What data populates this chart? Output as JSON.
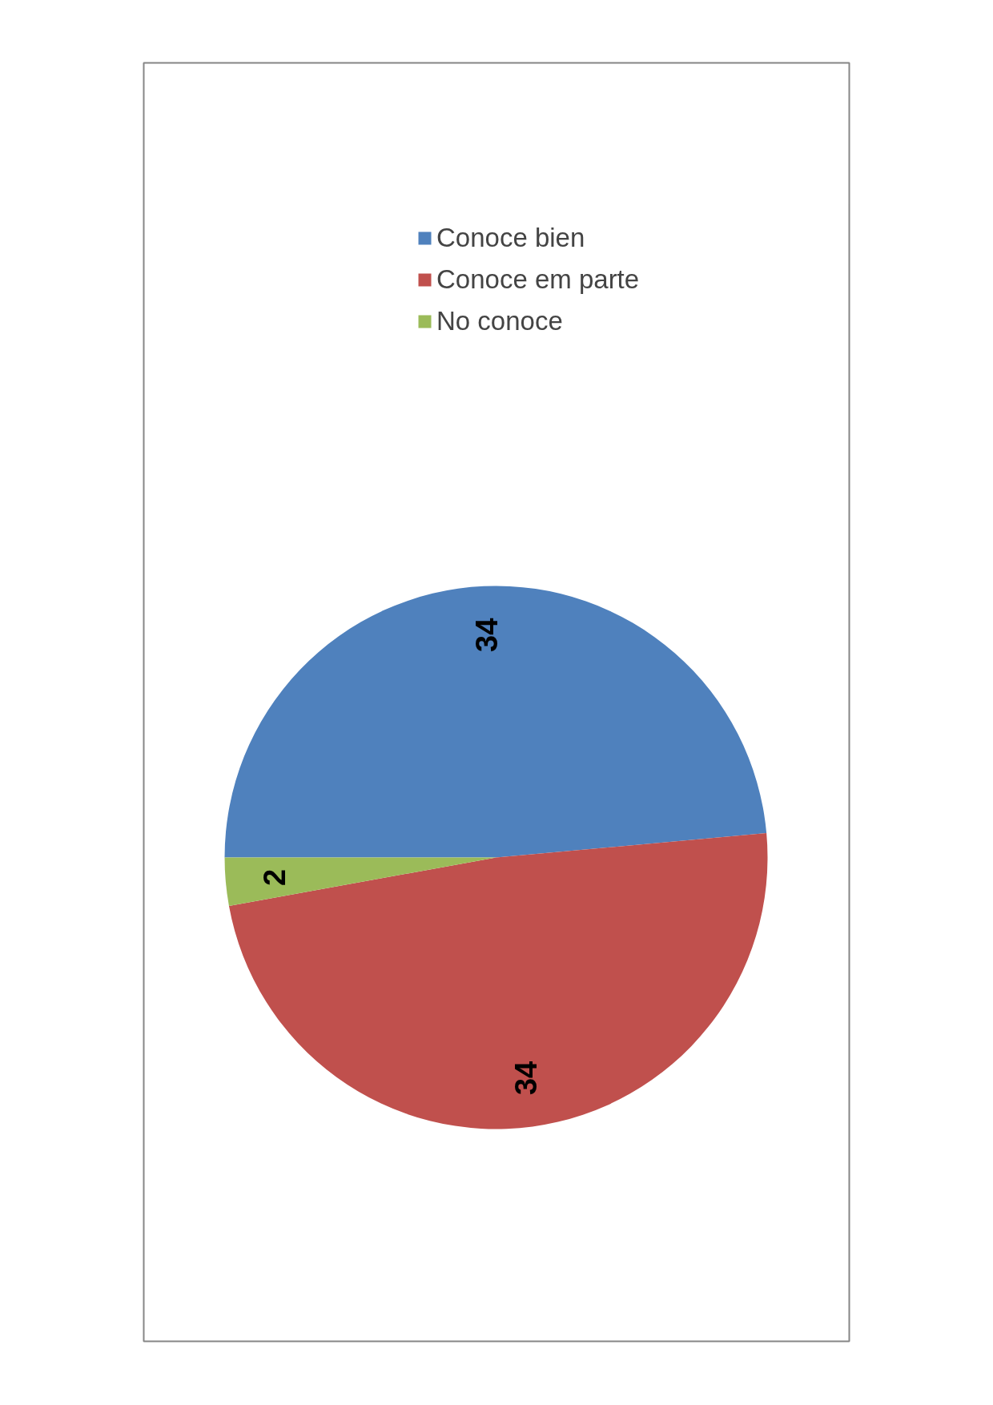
{
  "chart_data": {
    "type": "pie",
    "categories": [
      "Conoce bien",
      "Conoce em parte",
      "No conoce"
    ],
    "values": [
      34,
      34,
      2
    ],
    "colors": [
      "#4f81bd",
      "#c0504d",
      "#9bbb59"
    ],
    "data_labels": true,
    "legend": "right"
  }
}
